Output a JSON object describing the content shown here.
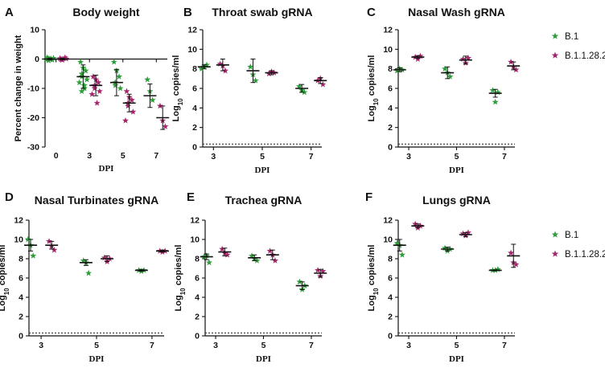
{
  "legend": [
    {
      "label": "B.1",
      "color": "#2e9e3a"
    },
    {
      "label": "B.1.1.28.2",
      "color": "#a4256a"
    }
  ],
  "chart_data": [
    {
      "panel": "A",
      "type": "scatter",
      "title": "Body weight",
      "xlabel": "DPI",
      "ylabel": "Percent change in weight",
      "categories": [
        "0",
        "3",
        "5",
        "7"
      ],
      "ylim": [
        -30,
        10
      ],
      "yticks": [
        "10",
        "0",
        "-10",
        "-20",
        "-30"
      ],
      "baseline": null,
      "series": [
        {
          "name": "B.1",
          "points": [
            [
              0,
              0.5
            ],
            [
              0,
              0
            ],
            [
              0,
              -0.3
            ],
            [
              0,
              0.2
            ],
            [
              0,
              -0.5
            ],
            [
              0,
              0.3
            ],
            [
              0,
              -0.2
            ],
            [
              0,
              0.1
            ],
            [
              1,
              -1
            ],
            [
              1,
              -3
            ],
            [
              1,
              -4
            ],
            [
              1,
              -5
            ],
            [
              1,
              -6
            ],
            [
              1,
              -7
            ],
            [
              1,
              -8
            ],
            [
              1,
              -9
            ],
            [
              1,
              -10
            ],
            [
              1,
              -11
            ],
            [
              2,
              -1
            ],
            [
              2,
              -4
            ],
            [
              2,
              -6
            ],
            [
              2,
              -8
            ],
            [
              2,
              -9
            ],
            [
              2,
              -10
            ],
            [
              3,
              -7
            ],
            [
              3,
              -11
            ],
            [
              3,
              -14
            ]
          ],
          "mean": [
            0,
            -6,
            -8,
            -12.5
          ],
          "err": [
            0.3,
            4,
            4.5,
            4
          ]
        },
        {
          "name": "B.1.1.28.2",
          "points": [
            [
              0,
              0.2
            ],
            [
              0,
              -0.3
            ],
            [
              0,
              0.5
            ],
            [
              0,
              0
            ],
            [
              0,
              -0.2
            ],
            [
              0,
              0.1
            ],
            [
              1,
              -6
            ],
            [
              1,
              -7
            ],
            [
              1,
              -8
            ],
            [
              1,
              -9
            ],
            [
              1,
              -10
            ],
            [
              1,
              -11
            ],
            [
              1,
              -12
            ],
            [
              1,
              -15
            ],
            [
              2,
              -11
            ],
            [
              2,
              -13
            ],
            [
              2,
              -14
            ],
            [
              2,
              -15
            ],
            [
              2,
              -16
            ],
            [
              2,
              -18
            ],
            [
              2,
              -21
            ],
            [
              3,
              -16
            ],
            [
              3,
              -21
            ],
            [
              3,
              -23
            ]
          ],
          "mean": [
            0,
            -9,
            -15,
            -20
          ],
          "err": [
            0.3,
            3.5,
            3,
            4
          ]
        }
      ]
    },
    {
      "panel": "B",
      "type": "scatter",
      "title": "Throat swab gRNA",
      "xlabel": "DPI",
      "ylabel_main": "Log",
      "ylabel_sub": "10",
      "ylabel_rest": " copies/ml",
      "categories": [
        "3",
        "5",
        "7"
      ],
      "ylim": [
        0,
        12
      ],
      "yticks": [
        "0",
        "2",
        "4",
        "6",
        "8",
        "10",
        "12"
      ],
      "baseline": 0.3,
      "series": [
        {
          "name": "B.1",
          "points": [
            [
              0,
              8.0
            ],
            [
              0,
              8.2
            ],
            [
              0,
              8.4
            ],
            [
              1,
              8.2
            ],
            [
              1,
              7.4
            ],
            [
              1,
              6.8
            ],
            [
              2,
              6.2
            ],
            [
              2,
              5.8
            ],
            [
              2,
              5.6
            ]
          ],
          "mean": [
            8.2,
            7.8,
            6.0
          ],
          "err": [
            0.2,
            1.2,
            0.4
          ]
        },
        {
          "name": "B.1.1.28.2",
          "points": [
            [
              0,
              8.5
            ],
            [
              0,
              8.3
            ],
            [
              0,
              7.8
            ],
            [
              1,
              7.5
            ],
            [
              1,
              7.7
            ],
            [
              1,
              7.6
            ],
            [
              2,
              6.8
            ],
            [
              2,
              7.0
            ],
            [
              2,
              6.4
            ]
          ],
          "mean": [
            8.4,
            7.6,
            6.8
          ],
          "err": [
            0.6,
            0.2,
            0.3
          ]
        }
      ]
    },
    {
      "panel": "C",
      "type": "scatter",
      "title": "Nasal Wash gRNA",
      "xlabel": "DPI",
      "ylabel_main": "Log",
      "ylabel_sub": "10",
      "ylabel_rest": " copies/ml",
      "categories": [
        "3",
        "5",
        "7"
      ],
      "ylim": [
        0,
        12
      ],
      "yticks": [
        "0",
        "2",
        "4",
        "6",
        "8",
        "10",
        "12"
      ],
      "baseline": 0.3,
      "series": [
        {
          "name": "B.1",
          "points": [
            [
              0,
              7.8
            ],
            [
              0,
              8.0
            ],
            [
              0,
              7.9
            ],
            [
              1,
              8.0
            ],
            [
              1,
              7.6
            ],
            [
              1,
              7.2
            ],
            [
              2,
              5.8
            ],
            [
              2,
              4.6
            ],
            [
              2,
              5.6
            ]
          ],
          "mean": [
            7.9,
            7.6,
            5.5
          ],
          "err": [
            0.2,
            0.6,
            0.4
          ]
        },
        {
          "name": "B.1.1.28.2",
          "points": [
            [
              0,
              9.2
            ],
            [
              0,
              9.0
            ],
            [
              0,
              9.3
            ],
            [
              1,
              9.0
            ],
            [
              1,
              8.6
            ],
            [
              1,
              9.1
            ],
            [
              2,
              8.7
            ],
            [
              2,
              8.2
            ],
            [
              2,
              7.9
            ]
          ],
          "mean": [
            9.2,
            8.9,
            8.3
          ],
          "err": [
            0.15,
            0.4,
            0.4
          ]
        }
      ]
    },
    {
      "panel": "D",
      "type": "scatter",
      "title": "Nasal Turbinates gRNA",
      "xlabel": "DPI",
      "ylabel_main": "Log",
      "ylabel_sub": "10",
      "ylabel_rest": " copies/ml",
      "categories": [
        "3",
        "5",
        "7"
      ],
      "ylim": [
        0,
        12
      ],
      "yticks": [
        "0",
        "2",
        "4",
        "6",
        "8",
        "10",
        "12"
      ],
      "baseline": 0.3,
      "series": [
        {
          "name": "B.1",
          "points": [
            [
              0,
              10.0
            ],
            [
              0,
              9.4
            ],
            [
              0,
              8.3
            ],
            [
              1,
              7.8
            ],
            [
              1,
              7.6
            ],
            [
              1,
              6.5
            ],
            [
              2,
              6.8
            ],
            [
              2,
              6.7
            ],
            [
              2,
              6.8
            ]
          ],
          "mean": [
            9.4,
            7.6,
            6.8
          ],
          "err": [
            0.6,
            0.3,
            0.1
          ]
        },
        {
          "name": "B.1.1.28.2",
          "points": [
            [
              0,
              9.8
            ],
            [
              0,
              9.3
            ],
            [
              0,
              8.9
            ],
            [
              1,
              8.1
            ],
            [
              1,
              7.7
            ],
            [
              1,
              8.0
            ],
            [
              2,
              8.8
            ],
            [
              2,
              8.7
            ],
            [
              2,
              8.8
            ]
          ],
          "mean": [
            9.4,
            8.0,
            8.8
          ],
          "err": [
            0.4,
            0.3,
            0.1
          ]
        }
      ]
    },
    {
      "panel": "E",
      "type": "scatter",
      "title": "Trachea gRNA",
      "xlabel": "DPI",
      "ylabel_main": "Log",
      "ylabel_sub": "10",
      "ylabel_rest": " copies/ml",
      "categories": [
        "3",
        "5",
        "7"
      ],
      "ylim": [
        0,
        12
      ],
      "yticks": [
        "0",
        "2",
        "4",
        "6",
        "8",
        "10",
        "12"
      ],
      "baseline": 0.3,
      "series": [
        {
          "name": "B.1",
          "points": [
            [
              0,
              8.2
            ],
            [
              0,
              8.3
            ],
            [
              0,
              7.6
            ],
            [
              1,
              8.3
            ],
            [
              1,
              8.0
            ],
            [
              1,
              7.8
            ],
            [
              2,
              5.6
            ],
            [
              2,
              4.8
            ],
            [
              2,
              5.2
            ]
          ],
          "mean": [
            8.2,
            8.1,
            5.2
          ],
          "err": [
            0.3,
            0.3,
            0.4
          ]
        },
        {
          "name": "B.1.1.28.2",
          "points": [
            [
              0,
              9.0
            ],
            [
              0,
              8.6
            ],
            [
              0,
              8.4
            ],
            [
              1,
              8.8
            ],
            [
              1,
              8.4
            ],
            [
              1,
              7.8
            ],
            [
              2,
              6.8
            ],
            [
              2,
              6.2
            ],
            [
              2,
              6.7
            ]
          ],
          "mean": [
            8.7,
            8.4,
            6.5
          ],
          "err": [
            0.4,
            0.5,
            0.4
          ]
        }
      ]
    },
    {
      "panel": "F",
      "type": "scatter",
      "title": "Lungs gRNA",
      "xlabel": "DPI",
      "ylabel_main": "Log",
      "ylabel_sub": "10",
      "ylabel_rest": " copies/ml",
      "categories": [
        "3",
        "5",
        "7"
      ],
      "ylim": [
        0,
        12
      ],
      "yticks": [
        "0",
        "2",
        "4",
        "6",
        "8",
        "10",
        "12"
      ],
      "baseline": 0.3,
      "series": [
        {
          "name": "B.1",
          "points": [
            [
              0,
              9.6
            ],
            [
              0,
              9.4
            ],
            [
              0,
              8.4
            ],
            [
              1,
              9.1
            ],
            [
              1,
              8.8
            ],
            [
              1,
              9.0
            ],
            [
              2,
              6.8
            ],
            [
              2,
              6.8
            ],
            [
              2,
              6.9
            ]
          ],
          "mean": [
            9.4,
            9.0,
            6.8
          ],
          "err": [
            0.6,
            0.2,
            0.05
          ]
        },
        {
          "name": "B.1.1.28.2",
          "points": [
            [
              0,
              11.6
            ],
            [
              0,
              11.2
            ],
            [
              0,
              11.4
            ],
            [
              1,
              10.6
            ],
            [
              1,
              10.4
            ],
            [
              1,
              10.7
            ],
            [
              2,
              8.6
            ],
            [
              2,
              7.6
            ],
            [
              2,
              7.4
            ]
          ],
          "mean": [
            11.4,
            10.5,
            8.3
          ],
          "err": [
            0.2,
            0.2,
            1.2
          ]
        }
      ]
    }
  ]
}
